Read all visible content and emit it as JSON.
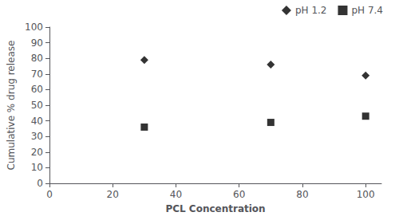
{
  "chart_data": {
    "type": "scatter",
    "xlabel": "PCL Concentration",
    "ylabel": "Cumulative % drug release",
    "x": [
      30,
      70,
      100
    ],
    "series": [
      {
        "name": "pH 1.2",
        "color": "#000000",
        "marker": "diamond",
        "values": [
          79,
          76,
          69
        ]
      },
      {
        "name": "pH 7.4",
        "color": "#000000",
        "marker": "square",
        "values": [
          36,
          39,
          43
        ]
      }
    ],
    "xlim": [
      0,
      105
    ],
    "ylim": [
      0,
      100
    ],
    "xticks": [
      0,
      20,
      40,
      60,
      80,
      100
    ],
    "yticks": [
      0,
      10,
      20,
      30,
      40,
      50,
      60,
      70,
      80,
      90,
      100
    ],
    "grid": false,
    "legend": "upper right"
  }
}
